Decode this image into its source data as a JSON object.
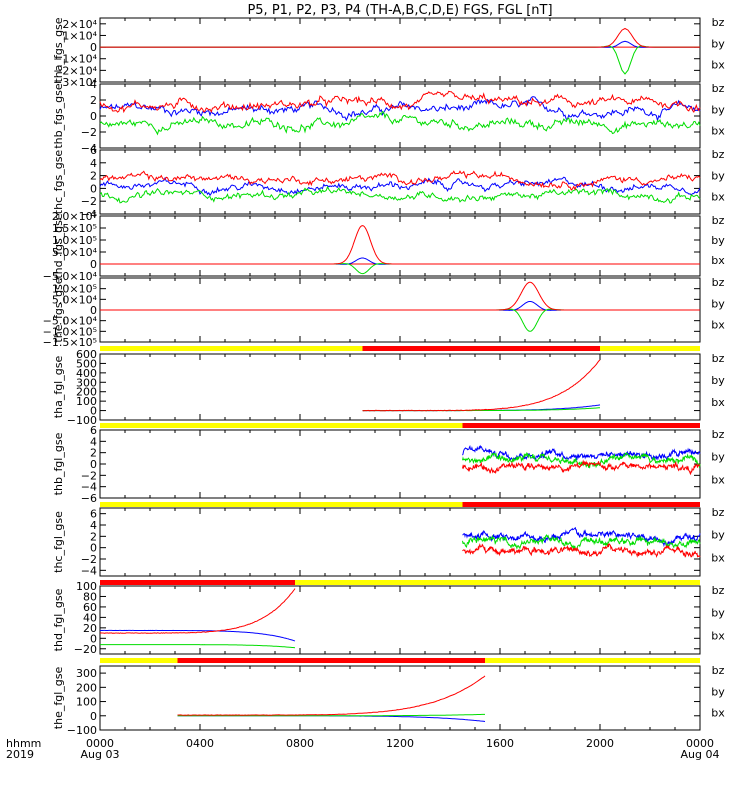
{
  "title": "P5, P1, P2, P3, P4 (TH-A,B,C,D,E) FGS, FGL [nT]",
  "xaxis": {
    "corner_labels": [
      "hhmm",
      "2019"
    ],
    "ticks": [
      {
        "hour": 0,
        "lines": [
          "0000",
          "Aug 03"
        ]
      },
      {
        "hour": 4,
        "lines": [
          "0400"
        ]
      },
      {
        "hour": 8,
        "lines": [
          "0800"
        ]
      },
      {
        "hour": 12,
        "lines": [
          "1200"
        ]
      },
      {
        "hour": 16,
        "lines": [
          "1600"
        ]
      },
      {
        "hour": 20,
        "lines": [
          "2000"
        ]
      },
      {
        "hour": 24,
        "lines": [
          "0000",
          "Aug 04"
        ]
      }
    ]
  },
  "legend": [
    {
      "name": "bz",
      "color": "#ff0000"
    },
    {
      "name": "by",
      "color": "#00cc00"
    },
    {
      "name": "bx",
      "color": "#0000ff"
    }
  ],
  "colors": {
    "bz": "#ff0000",
    "by": "#00dd00",
    "bx": "#0000ff",
    "bar_yellow": "#ffff00",
    "bar_red": "#ff0000"
  },
  "chart_data": [
    {
      "type": "line",
      "name": "tha_fgs_gse",
      "ylim": [
        -30000,
        25000
      ],
      "yticks": [
        {
          "v": 20000,
          "t": "2×10⁴"
        },
        {
          "v": 10000,
          "t": "1×10⁴"
        },
        {
          "v": 0,
          "t": "0"
        },
        {
          "v": -10000,
          "t": "−1×10⁴"
        },
        {
          "v": -20000,
          "t": "−2×10⁴"
        },
        {
          "v": -30000,
          "t": "−3×10⁴"
        }
      ],
      "profile": "spike",
      "span": [
        0,
        24
      ],
      "peak_hour": 21.0,
      "width": 0.4,
      "peaks": {
        "bz": 16000,
        "by": -23000,
        "bx": 5000
      }
    },
    {
      "type": "line",
      "name": "thb_fgs_gse",
      "ylim": [
        -4,
        4
      ],
      "yticks": [
        {
          "v": 4,
          "t": "4"
        },
        {
          "v": 2,
          "t": "2"
        },
        {
          "v": 0,
          "t": "0"
        },
        {
          "v": -2,
          "t": "−2"
        },
        {
          "v": -4,
          "t": "−4"
        }
      ],
      "profile": "noise",
      "span": [
        0,
        24
      ],
      "levels": {
        "bz": 1.5,
        "by": -1.0,
        "bx": 0.8
      }
    },
    {
      "type": "line",
      "name": "thc_fgs_gse",
      "ylim": [
        -4,
        6
      ],
      "yticks": [
        {
          "v": 6,
          "t": "6"
        },
        {
          "v": 4,
          "t": "4"
        },
        {
          "v": 2,
          "t": "2"
        },
        {
          "v": 0,
          "t": "0"
        },
        {
          "v": -2,
          "t": "−2"
        },
        {
          "v": -4,
          "t": "−4"
        }
      ],
      "profile": "noise",
      "span": [
        0,
        24
      ],
      "levels": {
        "bz": 1.5,
        "by": -1.0,
        "bx": 0.5
      }
    },
    {
      "type": "line",
      "name": "thd_fgs_gse",
      "ylim": [
        -50000,
        200000
      ],
      "yticks": [
        {
          "v": 200000,
          "t": "2.0×10⁵"
        },
        {
          "v": 150000,
          "t": "1.5×10⁵"
        },
        {
          "v": 100000,
          "t": "1.0×10⁵"
        },
        {
          "v": 50000,
          "t": "5.0×10⁴"
        },
        {
          "v": 0,
          "t": "0"
        },
        {
          "v": -50000,
          "t": "−5.0×10⁴"
        }
      ],
      "profile": "spike",
      "span": [
        7.8,
        13.3
      ],
      "peak_hour": 10.5,
      "width": 0.45,
      "peaks": {
        "bz": 160000,
        "by": -40000,
        "bx": 25000
      }
    },
    {
      "type": "line",
      "name": "the_fgs_gse",
      "ylim": [
        -150000,
        150000
      ],
      "yticks": [
        {
          "v": 100000,
          "t": "1.0×10⁵"
        },
        {
          "v": 50000,
          "t": "5.0×10⁴"
        },
        {
          "v": 0,
          "t": "0"
        },
        {
          "v": -50000,
          "t": "−5.0×10⁴"
        },
        {
          "v": -100000,
          "t": "−1.0×10⁵"
        },
        {
          "v": -150000,
          "t": "−1.5×10⁵"
        }
      ],
      "profile": "spike",
      "span": [
        15.5,
        19
      ],
      "peak_hour": 17.2,
      "width": 0.5,
      "peaks": {
        "bz": 130000,
        "by": -100000,
        "bx": 40000
      },
      "bar": [
        {
          "from": 0,
          "to": 10.5,
          "c": "y"
        },
        {
          "from": 10.5,
          "to": 20,
          "c": "r"
        },
        {
          "from": 20,
          "to": 24,
          "c": "y"
        }
      ]
    },
    {
      "type": "line",
      "name": "tha_fgl_gse",
      "ylim": [
        -100,
        600
      ],
      "yticks": [
        {
          "v": 600,
          "t": "600"
        },
        {
          "v": 500,
          "t": "500"
        },
        {
          "v": 400,
          "t": "400"
        },
        {
          "v": 300,
          "t": "300"
        },
        {
          "v": 200,
          "t": "200"
        },
        {
          "v": 100,
          "t": "100"
        },
        {
          "v": 0,
          "t": "0"
        },
        {
          "v": -100,
          "t": "−100"
        }
      ],
      "profile": "growth",
      "span": [
        10.5,
        20
      ],
      "ends": {
        "bz": [
          0,
          540
        ],
        "by": [
          0,
          30
        ],
        "bx": [
          0,
          60
        ]
      },
      "bar": [
        {
          "from": 0,
          "to": 14.5,
          "c": "y"
        },
        {
          "from": 14.5,
          "to": 24,
          "c": "r"
        }
      ]
    },
    {
      "type": "line",
      "name": "thb_fgl_gse",
      "ylim": [
        -6,
        6
      ],
      "yticks": [
        {
          "v": 6,
          "t": "6"
        },
        {
          "v": 4,
          "t": "4"
        },
        {
          "v": 2,
          "t": "2"
        },
        {
          "v": 0,
          "t": "0"
        },
        {
          "v": -2,
          "t": "−2"
        },
        {
          "v": -4,
          "t": "−4"
        },
        {
          "v": -6,
          "t": "−6"
        }
      ],
      "profile": "noise",
      "span": [
        14.5,
        24
      ],
      "levels": {
        "bz": -0.5,
        "by": 0.5,
        "bx": 2.0
      },
      "bar": [
        {
          "from": 0,
          "to": 14.5,
          "c": "y"
        },
        {
          "from": 14.5,
          "to": 24,
          "c": "r"
        }
      ]
    },
    {
      "type": "line",
      "name": "thc_fgl_gse",
      "ylim": [
        -5,
        7
      ],
      "yticks": [
        {
          "v": 6,
          "t": "6"
        },
        {
          "v": 4,
          "t": "4"
        },
        {
          "v": 2,
          "t": "2"
        },
        {
          "v": 0,
          "t": "0"
        },
        {
          "v": -2,
          "t": "−2"
        },
        {
          "v": -4,
          "t": "−4"
        }
      ],
      "profile": "noise",
      "span": [
        14.5,
        24
      ],
      "levels": {
        "bz": -0.5,
        "by": 1.0,
        "bx": 2.0
      },
      "bar": [
        {
          "from": 0,
          "to": 7.8,
          "c": "r"
        },
        {
          "from": 7.8,
          "to": 24,
          "c": "y"
        }
      ]
    },
    {
      "type": "line",
      "name": "thd_fgl_gse",
      "ylim": [
        -30,
        100
      ],
      "yticks": [
        {
          "v": 100,
          "t": "100"
        },
        {
          "v": 80,
          "t": "80"
        },
        {
          "v": 60,
          "t": "60"
        },
        {
          "v": 40,
          "t": "40"
        },
        {
          "v": 20,
          "t": "20"
        },
        {
          "v": 0,
          "t": "0"
        },
        {
          "v": -20,
          "t": "−20"
        }
      ],
      "profile": "growth",
      "span": [
        0,
        7.8
      ],
      "ends": {
        "bz": [
          10,
          95
        ],
        "by": [
          -12,
          -18
        ],
        "bx": [
          15,
          -5
        ]
      },
      "bar": [
        {
          "from": 0,
          "to": 3.1,
          "c": "y"
        },
        {
          "from": 3.1,
          "to": 15.4,
          "c": "r"
        },
        {
          "from": 15.4,
          "to": 24,
          "c": "y"
        }
      ]
    },
    {
      "type": "line",
      "name": "the_fgl_gse",
      "ylim": [
        -100,
        350
      ],
      "yticks": [
        {
          "v": 300,
          "t": "300"
        },
        {
          "v": 200,
          "t": "200"
        },
        {
          "v": 100,
          "t": "100"
        },
        {
          "v": 0,
          "t": "0"
        },
        {
          "v": -100,
          "t": "−100"
        }
      ],
      "profile": "growth",
      "span": [
        3.1,
        15.4
      ],
      "ends": {
        "bz": [
          5,
          280
        ],
        "by": [
          0,
          10
        ],
        "bx": [
          0,
          -40
        ]
      }
    }
  ]
}
